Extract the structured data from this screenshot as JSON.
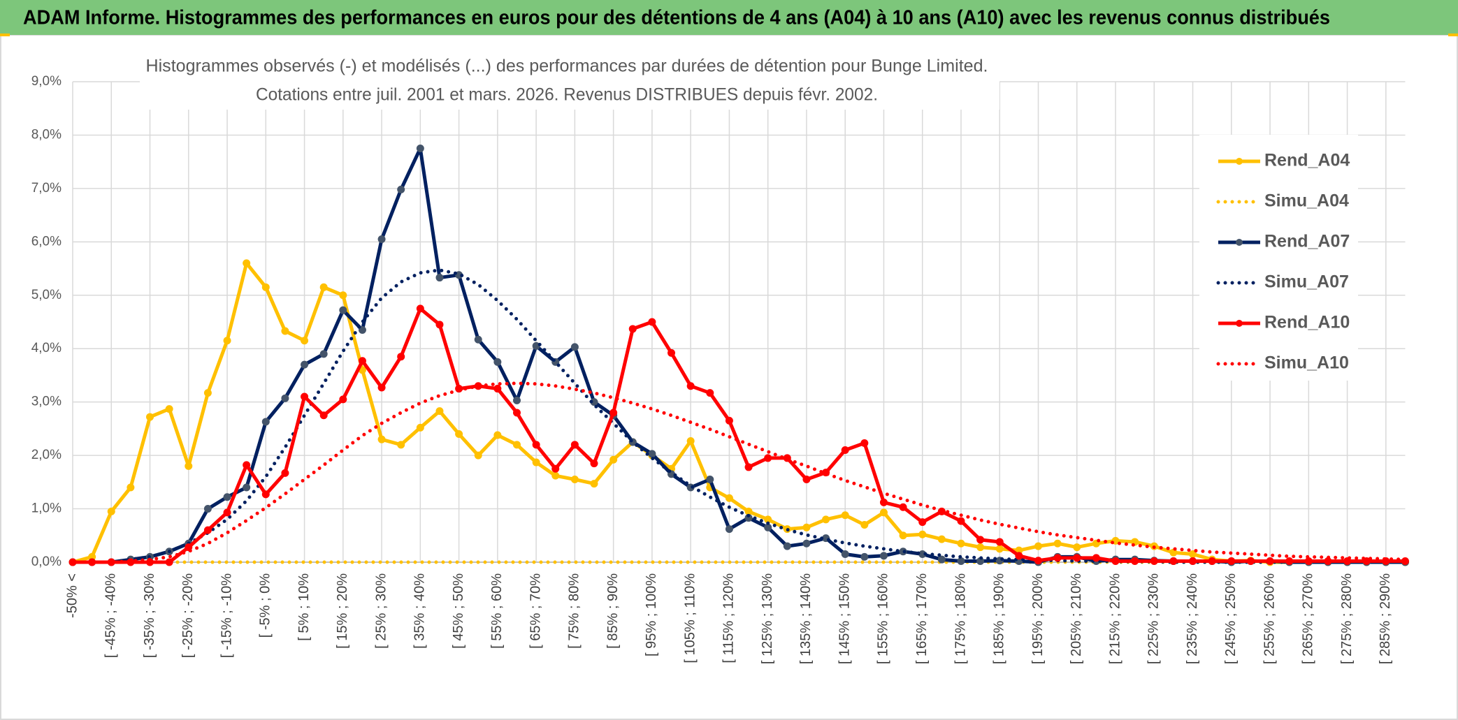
{
  "chart_data": {
    "type": "line",
    "title": "ADAM Informe. Histogrammes des performances en euros pour des détentions de 4 ans (A04) à 10 ans (A10) avec les revenus connus distribués",
    "subtitle": [
      "Histogrammes observés (-) et modélisés (...) des performances par durées de détention pour Bunge Limited.",
      "Cotations entre juil. 2001 et mars. 2026. Revenus DISTRIBUES depuis févr. 2002."
    ],
    "categories": [
      "-50% <",
      null,
      "[ -45% ; -40%",
      null,
      "[ -35% ; -30%",
      null,
      "[ -25% ; -20%",
      null,
      "[ -15% ; -10%",
      null,
      "[ -5% ; 0%",
      null,
      "[ 5% ; 10%",
      null,
      "[ 15% ; 20%",
      null,
      "[ 25% ; 30%",
      null,
      "[ 35% ; 40%",
      null,
      "[ 45% ; 50%",
      null,
      "[ 55% ; 60%",
      null,
      "[ 65% ; 70%",
      null,
      "[ 75% ; 80%",
      null,
      "[ 85% ; 90%",
      null,
      "[ 95% ; 100%",
      null,
      "[ 105% ; 110%",
      null,
      "[ 115% ; 120%",
      null,
      "[ 125% ; 130%",
      null,
      "[ 135% ; 140%",
      null,
      "[ 145% ; 150%",
      null,
      "[ 155% ; 160%",
      null,
      "[ 165% ; 170%",
      null,
      "[ 175% ; 180%",
      null,
      "[ 185% ; 190%",
      null,
      "[ 195% ; 200%",
      null,
      "[ 205% ; 210%",
      null,
      "[ 215% ; 220%",
      null,
      "[ 225% ; 230%",
      null,
      "[ 235% ; 240%",
      null,
      "[ 245% ; 250%",
      null,
      "[ 255% ; 260%",
      null,
      "[ 265% ; 270%",
      null,
      "[ 275% ; 280%",
      null,
      "[ 285% ; 290%",
      null
    ],
    "series": [
      {
        "name": "Rend_A04",
        "color": "#ffc000",
        "style": "solid",
        "markers": true,
        "marker_color": "#ffc000",
        "values": [
          0,
          0.1,
          0.95,
          1.4,
          2.72,
          2.87,
          1.8,
          3.17,
          4.15,
          5.6,
          5.15,
          4.33,
          4.15,
          5.15,
          5.0,
          3.6,
          2.3,
          2.2,
          2.52,
          2.83,
          2.4,
          2.0,
          2.38,
          2.2,
          1.87,
          1.62,
          1.55,
          1.47,
          1.92,
          2.25,
          2.0,
          1.75,
          2.27,
          1.4,
          1.2,
          0.95,
          0.8,
          0.62,
          0.65,
          0.8,
          0.88,
          0.7,
          0.93,
          0.5,
          0.52,
          0.43,
          0.35,
          0.28,
          0.25,
          0.22,
          0.3,
          0.35,
          0.28,
          0.35,
          0.4,
          0.38,
          0.3,
          0.18,
          0.15,
          0.05,
          0.02,
          0.03,
          0,
          0,
          0,
          0,
          0,
          0,
          0,
          0
        ]
      },
      {
        "name": "Simu_A04",
        "color": "#ffc000",
        "style": "dotted",
        "markers": false,
        "values": [
          0,
          0,
          0,
          0,
          0,
          0,
          0,
          0,
          0,
          0,
          0,
          0,
          0,
          0,
          0,
          0,
          0,
          0,
          0,
          0,
          0,
          0,
          0,
          0,
          0,
          0,
          0,
          0,
          0,
          0,
          0,
          0,
          0,
          0,
          0,
          0,
          0,
          0,
          0,
          0,
          0,
          0,
          0,
          0,
          0,
          0,
          0,
          0,
          0,
          0,
          0,
          0,
          0,
          0,
          0,
          0,
          0,
          0,
          0,
          0,
          0,
          0,
          0,
          0,
          0,
          0,
          0,
          0,
          0,
          0
        ]
      },
      {
        "name": "Rend_A07",
        "color": "#002060",
        "style": "solid",
        "markers": true,
        "marker_color": "#44546a",
        "values": [
          0,
          0,
          0,
          0.05,
          0.1,
          0.2,
          0.35,
          1.0,
          1.22,
          1.4,
          2.63,
          3.07,
          3.7,
          3.9,
          4.72,
          4.35,
          6.05,
          6.98,
          7.75,
          5.33,
          5.38,
          4.17,
          3.75,
          3.03,
          4.05,
          3.75,
          4.03,
          3.0,
          2.75,
          2.25,
          2.03,
          1.65,
          1.4,
          1.55,
          0.62,
          0.83,
          0.65,
          0.3,
          0.35,
          0.45,
          0.15,
          0.1,
          0.12,
          0.2,
          0.15,
          0.05,
          0.02,
          0.02,
          0.03,
          0.02,
          0,
          0.1,
          0.1,
          0.02,
          0.05,
          0.05,
          0.03,
          0.02,
          0.02,
          0.02,
          0,
          0.02,
          0.02,
          0,
          0,
          0,
          0,
          0,
          0,
          0
        ]
      },
      {
        "name": "Simu_A07",
        "color": "#002060",
        "style": "dotted",
        "markers": false,
        "values": [
          0,
          0,
          0,
          0.05,
          0.1,
          0.2,
          0.35,
          0.55,
          0.8,
          1.15,
          1.6,
          2.15,
          2.75,
          3.35,
          3.95,
          4.5,
          4.95,
          5.25,
          5.42,
          5.47,
          5.4,
          5.2,
          4.9,
          4.55,
          4.15,
          3.75,
          3.35,
          2.95,
          2.6,
          2.25,
          1.95,
          1.68,
          1.43,
          1.22,
          1.03,
          0.87,
          0.73,
          0.61,
          0.51,
          0.43,
          0.36,
          0.3,
          0.25,
          0.2,
          0.16,
          0.13,
          0.1,
          0.08,
          0.06,
          0.05,
          0.04,
          0.03,
          0.02,
          0.02,
          0.01,
          0.01,
          0.01,
          0,
          0,
          0,
          0,
          0,
          0,
          0,
          0,
          0,
          0,
          0,
          0,
          0
        ]
      },
      {
        "name": "Rend_A10",
        "color": "#ff0000",
        "style": "solid",
        "markers": true,
        "marker_color": "#ff0000",
        "values": [
          0,
          0,
          0,
          0,
          0,
          0,
          0.28,
          0.6,
          0.93,
          1.82,
          1.27,
          1.67,
          3.1,
          2.75,
          3.05,
          3.77,
          3.27,
          3.85,
          4.75,
          4.45,
          3.25,
          3.3,
          3.25,
          2.8,
          2.2,
          1.75,
          2.2,
          1.85,
          2.8,
          4.37,
          4.5,
          3.92,
          3.3,
          3.17,
          2.65,
          1.78,
          1.95,
          1.95,
          1.55,
          1.68,
          2.1,
          2.23,
          1.12,
          1.03,
          0.75,
          0.95,
          0.77,
          0.42,
          0.38,
          0.12,
          0.03,
          0.08,
          0.08,
          0.08,
          0.02,
          0.02,
          0.02,
          0.02,
          0.02,
          0.02,
          0.02,
          0.02,
          0.02,
          0.02,
          0.02,
          0.02,
          0.02,
          0.02,
          0.02,
          0.02
        ]
      },
      {
        "name": "Simu_A10",
        "color": "#ff0000",
        "style": "dotted",
        "markers": false,
        "values": [
          0,
          0,
          0,
          0.02,
          0.05,
          0.1,
          0.2,
          0.35,
          0.55,
          0.78,
          1.02,
          1.28,
          1.55,
          1.82,
          2.1,
          2.37,
          2.6,
          2.8,
          2.98,
          3.12,
          3.22,
          3.3,
          3.34,
          3.35,
          3.34,
          3.3,
          3.24,
          3.17,
          3.08,
          2.98,
          2.87,
          2.75,
          2.62,
          2.49,
          2.35,
          2.21,
          2.07,
          1.93,
          1.8,
          1.66,
          1.53,
          1.41,
          1.29,
          1.18,
          1.07,
          0.97,
          0.88,
          0.79,
          0.71,
          0.64,
          0.57,
          0.51,
          0.46,
          0.41,
          0.36,
          0.32,
          0.28,
          0.25,
          0.22,
          0.19,
          0.17,
          0.15,
          0.13,
          0.11,
          0.1,
          0.09,
          0.08,
          0.07,
          0.06,
          0.05
        ]
      }
    ],
    "ylim": [
      0,
      9
    ],
    "yticks": [
      {
        "value": 0,
        "label": "0,0%"
      },
      {
        "value": 1,
        "label": "1,0%"
      },
      {
        "value": 2,
        "label": "2,0%"
      },
      {
        "value": 3,
        "label": "3,0%"
      },
      {
        "value": 4,
        "label": "4,0%"
      },
      {
        "value": 5,
        "label": "5,0%"
      },
      {
        "value": 6,
        "label": "6,0%"
      },
      {
        "value": 7,
        "label": "7,0%"
      },
      {
        "value": 8,
        "label": "8,0%"
      },
      {
        "value": 9,
        "label": "9,0%"
      }
    ],
    "grid": true,
    "legend": "upper right"
  }
}
